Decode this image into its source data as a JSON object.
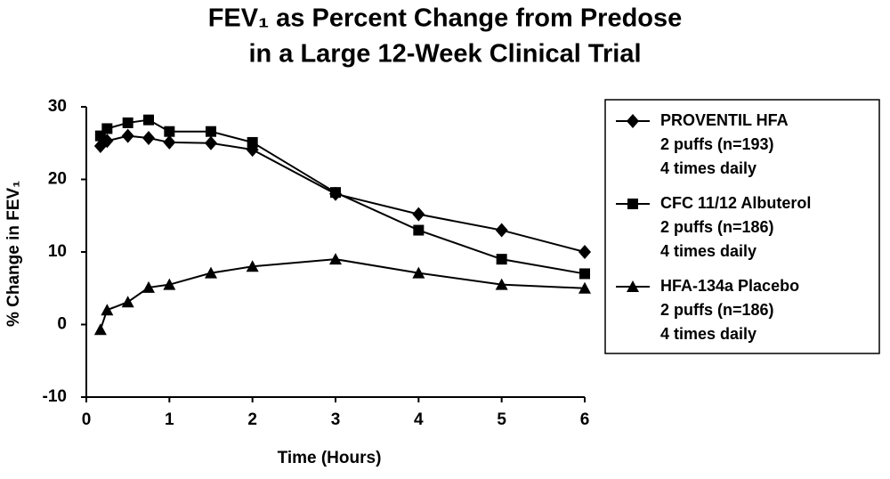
{
  "chart_data": {
    "type": "line",
    "title": [
      "FEV₁ as Percent Change from Predose",
      "in a Large 12-Week Clinical Trial"
    ],
    "x_label": "Time (Hours)",
    "y_label": "% Change in FEV₁",
    "x": [
      0.17,
      0.25,
      0.5,
      0.75,
      1,
      1.5,
      2,
      3,
      4,
      5,
      6
    ],
    "series": [
      {
        "name": "PROVENTIL HFA",
        "legend_lines": [
          "2 puffs (n=193)",
          "4 times daily"
        ],
        "color": "#000000",
        "marker": "diamond",
        "values": [
          24.6,
          25.3,
          26,
          25.7,
          25.1,
          25,
          24.1,
          18,
          15.2,
          13,
          10
        ]
      },
      {
        "name": "CFC 11/12 Albuterol",
        "legend_lines": [
          "2 puffs (n=186)",
          "4 times daily"
        ],
        "color": "#000000",
        "marker": "square",
        "values": [
          26,
          27,
          27.8,
          28.2,
          26.6,
          26.6,
          25.1,
          18.2,
          13,
          9,
          7
        ]
      },
      {
        "name": "HFA-134a Placebo",
        "legend_lines": [
          "2 puffs (n=186)",
          "4 times daily"
        ],
        "color": "#000000",
        "marker": "triangle",
        "values": [
          -0.7,
          2,
          3.1,
          5.1,
          5.5,
          7.1,
          8,
          9,
          7.1,
          5.5,
          5
        ]
      }
    ],
    "xlim": [
      0,
      6
    ],
    "xticks": [
      0,
      1,
      2,
      3,
      4,
      5,
      6
    ],
    "ylim": [
      -10,
      30
    ],
    "yticks": [
      -10,
      0,
      10,
      20,
      30
    ],
    "grid": false,
    "legend": "right"
  }
}
